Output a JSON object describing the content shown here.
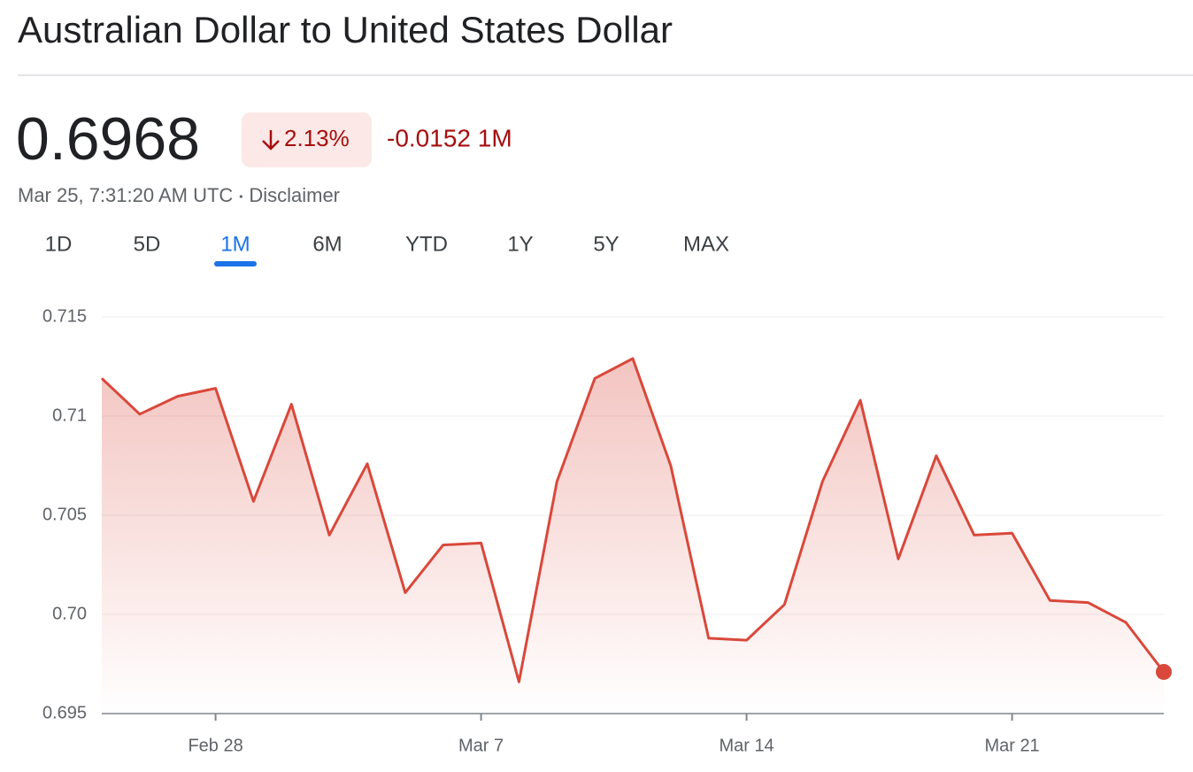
{
  "header": {
    "title": "Australian Dollar to United States Dollar"
  },
  "quote": {
    "price": "0.6968",
    "change_percent": "2.13%",
    "change": "-0.0152 1M",
    "timestamp": "Mar 25, 7:31:20 AM UTC",
    "disclaimer": "Disclaimer"
  },
  "tabs": {
    "items": [
      "1D",
      "5D",
      "1M",
      "6M",
      "YTD",
      "1Y",
      "5Y",
      "MAX"
    ],
    "selected": 2
  },
  "chart_data": {
    "type": "area",
    "categories": [
      null,
      null,
      null,
      "Feb 28",
      null,
      null,
      null,
      null,
      null,
      null,
      "Mar 7",
      null,
      null,
      null,
      null,
      null,
      null,
      "Mar 14",
      null,
      null,
      null,
      null,
      null,
      null,
      "Mar 21",
      null,
      null,
      null,
      null
    ],
    "values": [
      0.7119,
      0.7101,
      0.711,
      0.7114,
      0.7057,
      0.7106,
      0.704,
      0.7076,
      0.7011,
      0.7035,
      0.7036,
      0.6966,
      0.7067,
      0.7119,
      0.7129,
      0.7075,
      0.6988,
      0.6987,
      0.7005,
      0.7067,
      0.7108,
      0.7028,
      0.708,
      0.704,
      0.7041,
      0.7007,
      0.7006,
      0.6996,
      0.6971
    ],
    "color": "#d9483b",
    "ylim": [
      0.695,
      0.715
    ],
    "yticks": [
      0.695,
      {
        "value": 0.7,
        "label": "0.70"
      },
      0.705,
      0.71,
      0.715
    ],
    "grid": true
  }
}
